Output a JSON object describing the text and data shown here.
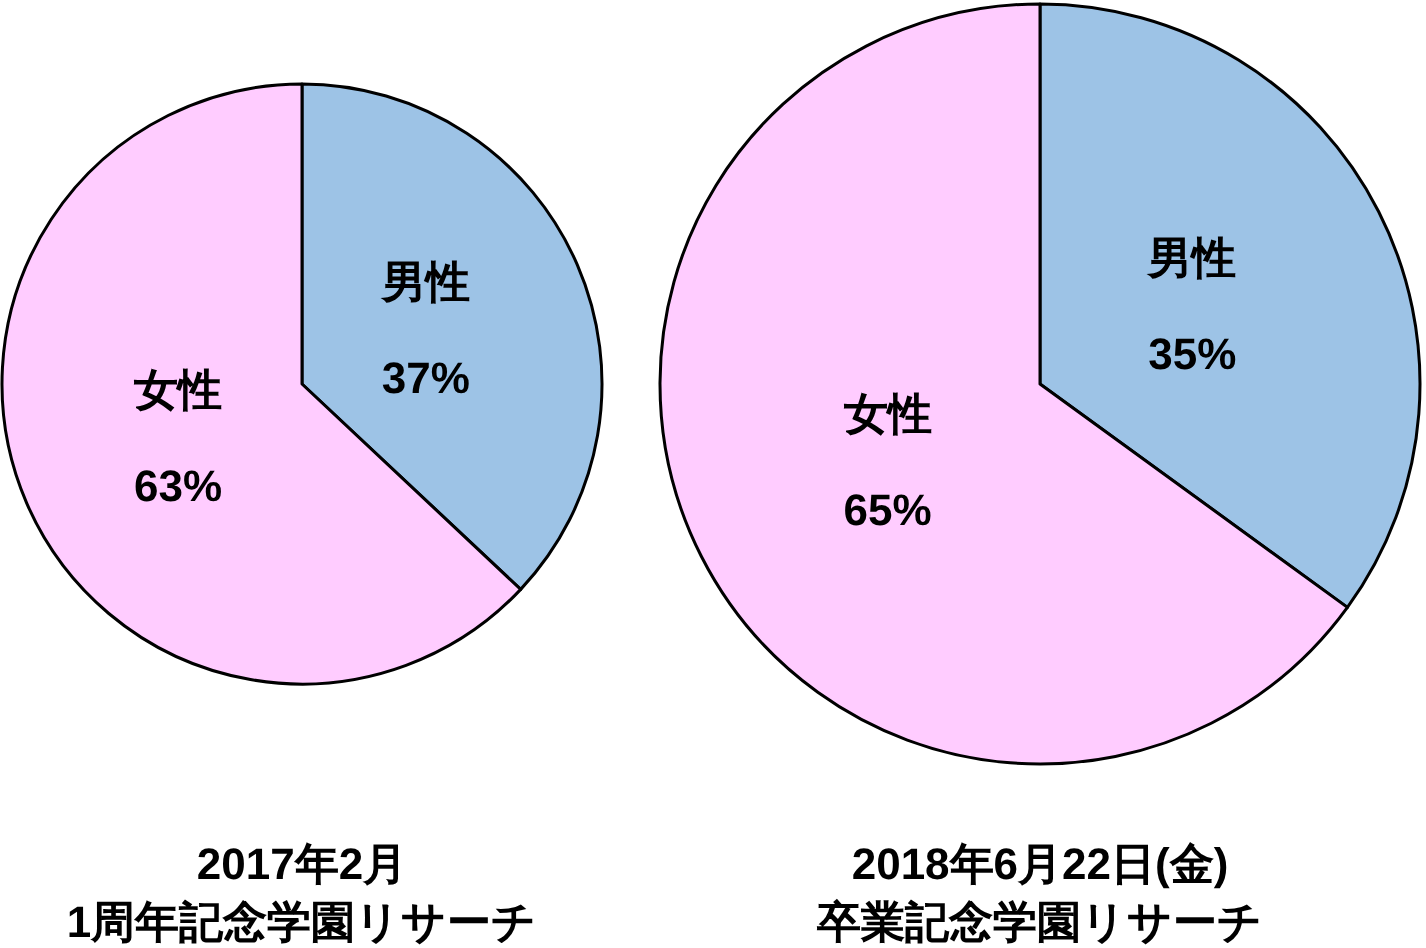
{
  "chart_data": [
    {
      "type": "pie",
      "title": "2017年2月",
      "subtitle": "1周年記念学園リサーチ",
      "categories": [
        "男性",
        "女性"
      ],
      "values": [
        37,
        63
      ],
      "colors": [
        "#9dc3e6",
        "#ffccff"
      ],
      "value_labels": [
        "37%",
        "63%"
      ]
    },
    {
      "type": "pie",
      "title": "2018年6月22日(金)",
      "subtitle": "卒業記念学園リサーチ",
      "categories": [
        "男性",
        "女性"
      ],
      "values": [
        35,
        65
      ],
      "colors": [
        "#9dc3e6",
        "#ffccff"
      ],
      "value_labels": [
        "35%",
        "65%"
      ]
    }
  ]
}
